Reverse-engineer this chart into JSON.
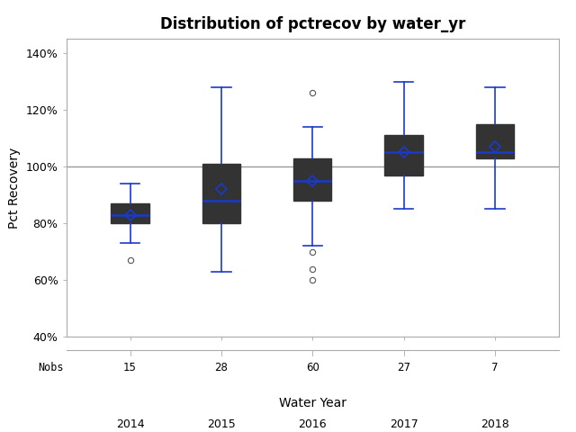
{
  "title": "Distribution of pctrecov by water_yr",
  "xlabel": "Water Year",
  "ylabel": "Pct Recovery",
  "categories": [
    2014,
    2015,
    2016,
    2017,
    2018
  ],
  "nobs": [
    15,
    28,
    60,
    27,
    7
  ],
  "box_stats": [
    {
      "whislo": 73,
      "q1": 80,
      "med": 83,
      "q3": 87,
      "whishi": 94,
      "fliers": [
        67
      ],
      "mean": 83
    },
    {
      "whislo": 63,
      "q1": 80,
      "med": 88,
      "q3": 101,
      "whishi": 128,
      "fliers": [],
      "mean": 92
    },
    {
      "whislo": 72,
      "q1": 88,
      "med": 95,
      "q3": 103,
      "whishi": 114,
      "fliers": [
        126,
        70,
        64,
        60
      ],
      "mean": 95
    },
    {
      "whislo": 85,
      "q1": 97,
      "med": 105,
      "q3": 111,
      "whishi": 130,
      "fliers": [],
      "mean": 105
    },
    {
      "whislo": 85,
      "q1": 103,
      "med": 105,
      "q3": 115,
      "whishi": 128,
      "fliers": [],
      "mean": 107
    }
  ],
  "ylim": [
    40,
    145
  ],
  "yticks": [
    40,
    60,
    80,
    100,
    120,
    140
  ],
  "ytick_labels": [
    "40%",
    "60%",
    "80%",
    "100%",
    "120%",
    "140%"
  ],
  "ref_line": 100,
  "box_facecolor": "#cdd5e0",
  "box_edgecolor": "#333333",
  "whisker_color": "#1a3acc",
  "median_color": "#1a3acc",
  "flier_color": "#555555",
  "mean_marker_color": "#1a3acc",
  "ref_line_color": "#999999",
  "title_fontsize": 12,
  "axis_label_fontsize": 10,
  "tick_fontsize": 9,
  "nobs_fontsize": 8.5,
  "bg_color": "#f0f0f0"
}
